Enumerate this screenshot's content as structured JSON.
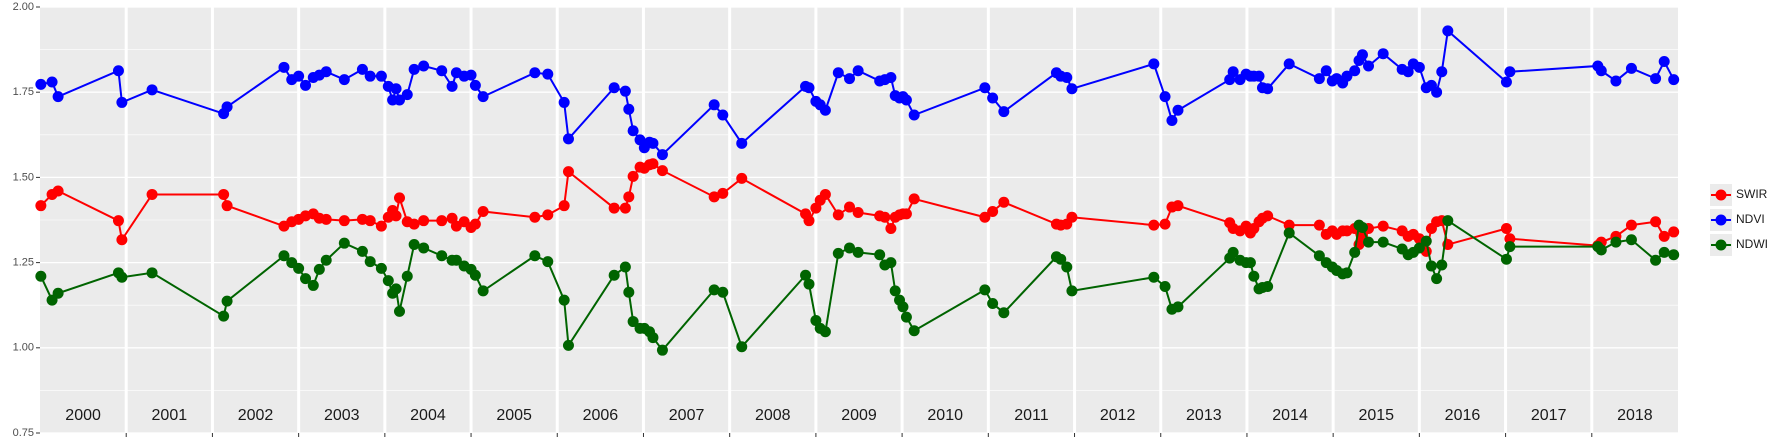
{
  "chart_data": {
    "type": "line",
    "x": [
      2000.01,
      2000.14,
      2000.21,
      2000.91,
      2000.95,
      2001.3,
      2002.13,
      2002.17,
      2002.83,
      2002.92,
      2003.0,
      2003.08,
      2003.17,
      2003.24,
      2003.32,
      2003.53,
      2003.74,
      2003.83,
      2003.96,
      2004.04,
      2004.09,
      2004.13,
      2004.17,
      2004.26,
      2004.34,
      2004.45,
      2004.66,
      2004.78,
      2004.83,
      2004.92,
      2005.0,
      2005.05,
      2005.14,
      2005.74,
      2005.89,
      2006.08,
      2006.13,
      2006.66,
      2006.79,
      2006.83,
      2006.88,
      2006.96,
      2007.01,
      2007.07,
      2007.11,
      2007.22,
      2007.82,
      2007.92,
      2008.14,
      2008.88,
      2008.92,
      2009.0,
      2009.05,
      2009.11,
      2009.26,
      2009.39,
      2009.49,
      2009.74,
      2009.8,
      2009.87,
      2009.92,
      2009.97,
      2010.01,
      2010.05,
      2010.14,
      2010.96,
      2011.05,
      2011.18,
      2011.79,
      2011.84,
      2011.91,
      2011.97,
      2012.92,
      2013.05,
      2013.13,
      2013.2,
      2013.8,
      2013.84,
      2013.92,
      2013.99,
      2014.04,
      2014.08,
      2014.14,
      2014.18,
      2014.24,
      2014.49,
      2014.84,
      2014.92,
      2014.99,
      2015.04,
      2015.11,
      2015.16,
      2015.25,
      2015.3,
      2015.34,
      2015.41,
      2015.58,
      2015.8,
      2015.87,
      2015.93,
      2016.0,
      2016.08,
      2016.14,
      2016.2,
      2016.26,
      2016.33,
      2017.01,
      2017.05,
      2018.07,
      2018.11,
      2018.28,
      2018.46,
      2018.74,
      2018.84,
      2018.95
    ],
    "series": [
      {
        "name": "SWIR",
        "color": "#ff0000",
        "values": [
          1.417,
          1.45,
          1.46,
          1.373,
          1.317,
          1.45,
          1.45,
          1.417,
          1.357,
          1.37,
          1.377,
          1.387,
          1.393,
          1.38,
          1.377,
          1.373,
          1.377,
          1.373,
          1.357,
          1.383,
          1.403,
          1.387,
          1.44,
          1.37,
          1.363,
          1.373,
          1.373,
          1.38,
          1.357,
          1.37,
          1.353,
          1.363,
          1.4,
          1.383,
          1.39,
          1.417,
          1.517,
          1.41,
          1.41,
          1.443,
          1.503,
          1.53,
          1.527,
          1.537,
          1.54,
          1.52,
          1.443,
          1.453,
          1.497,
          1.393,
          1.373,
          1.41,
          1.433,
          1.45,
          1.39,
          1.413,
          1.397,
          1.387,
          1.383,
          1.35,
          1.383,
          1.39,
          1.393,
          1.393,
          1.437,
          1.383,
          1.4,
          1.427,
          1.363,
          1.36,
          1.363,
          1.383,
          1.36,
          1.363,
          1.413,
          1.417,
          1.367,
          1.35,
          1.343,
          1.357,
          1.337,
          1.35,
          1.37,
          1.38,
          1.387,
          1.36,
          1.36,
          1.333,
          1.343,
          1.333,
          1.343,
          1.343,
          1.35,
          1.303,
          1.33,
          1.35,
          1.357,
          1.343,
          1.327,
          1.333,
          1.32,
          1.283,
          1.35,
          1.37,
          1.373,
          1.303,
          1.35,
          1.32,
          1.3,
          1.31,
          1.327,
          1.36,
          1.37,
          1.327,
          1.34
        ]
      },
      {
        "name": "NDVI",
        "color": "#0000ff",
        "values": [
          1.773,
          1.78,
          1.737,
          1.813,
          1.72,
          1.757,
          1.687,
          1.707,
          1.823,
          1.787,
          1.797,
          1.77,
          1.793,
          1.8,
          1.81,
          1.787,
          1.817,
          1.797,
          1.797,
          1.767,
          1.727,
          1.76,
          1.727,
          1.743,
          1.817,
          1.827,
          1.813,
          1.767,
          1.807,
          1.797,
          1.8,
          1.77,
          1.737,
          1.807,
          1.803,
          1.72,
          1.613,
          1.763,
          1.753,
          1.7,
          1.637,
          1.61,
          1.587,
          1.603,
          1.6,
          1.567,
          1.713,
          1.683,
          1.6,
          1.767,
          1.763,
          1.723,
          1.713,
          1.697,
          1.807,
          1.79,
          1.813,
          1.783,
          1.787,
          1.793,
          1.74,
          1.733,
          1.737,
          1.727,
          1.683,
          1.763,
          1.733,
          1.693,
          1.807,
          1.797,
          1.793,
          1.76,
          1.833,
          1.737,
          1.667,
          1.697,
          1.787,
          1.81,
          1.787,
          1.803,
          1.797,
          1.797,
          1.797,
          1.763,
          1.76,
          1.833,
          1.79,
          1.813,
          1.783,
          1.79,
          1.777,
          1.797,
          1.813,
          1.843,
          1.86,
          1.827,
          1.863,
          1.817,
          1.81,
          1.833,
          1.823,
          1.763,
          1.77,
          1.75,
          1.81,
          1.93,
          1.78,
          1.81,
          1.827,
          1.813,
          1.783,
          1.82,
          1.79,
          1.84,
          1.787
        ]
      },
      {
        "name": "NDWI",
        "color": "#006400",
        "values": [
          1.21,
          1.14,
          1.16,
          1.22,
          1.207,
          1.22,
          1.093,
          1.137,
          1.27,
          1.25,
          1.233,
          1.203,
          1.183,
          1.23,
          1.257,
          1.307,
          1.283,
          1.253,
          1.233,
          1.197,
          1.16,
          1.173,
          1.107,
          1.21,
          1.303,
          1.293,
          1.27,
          1.257,
          1.257,
          1.24,
          1.23,
          1.213,
          1.167,
          1.27,
          1.253,
          1.14,
          1.007,
          1.213,
          1.237,
          1.163,
          1.077,
          1.057,
          1.057,
          1.047,
          1.03,
          0.993,
          1.17,
          1.163,
          1.003,
          1.213,
          1.187,
          1.08,
          1.057,
          1.047,
          1.277,
          1.293,
          1.28,
          1.273,
          1.243,
          1.25,
          1.167,
          1.14,
          1.12,
          1.09,
          1.05,
          1.17,
          1.13,
          1.103,
          1.267,
          1.26,
          1.237,
          1.167,
          1.207,
          1.18,
          1.113,
          1.12,
          1.263,
          1.28,
          1.257,
          1.25,
          1.25,
          1.21,
          1.173,
          1.177,
          1.18,
          1.337,
          1.27,
          1.25,
          1.237,
          1.227,
          1.217,
          1.22,
          1.28,
          1.36,
          1.353,
          1.31,
          1.31,
          1.29,
          1.273,
          1.28,
          1.293,
          1.313,
          1.24,
          1.203,
          1.243,
          1.373,
          1.26,
          1.297,
          1.297,
          1.287,
          1.31,
          1.317,
          1.257,
          1.28,
          1.273
        ]
      }
    ],
    "xlim": [
      2000,
      2019
    ],
    "ylim": [
      0.75,
      2.0
    ],
    "yticks": [
      {
        "value": 0.75,
        "label": "0.75"
      },
      {
        "value": 1.0,
        "label": "1.00"
      },
      {
        "value": 1.25,
        "label": "1.25"
      },
      {
        "value": 1.5,
        "label": "1.50"
      },
      {
        "value": 1.75,
        "label": "1.75"
      },
      {
        "value": 2.0,
        "label": "2.00"
      }
    ],
    "year_labels": [
      2000,
      2001,
      2002,
      2003,
      2004,
      2005,
      2006,
      2007,
      2008,
      2009,
      2010,
      2011,
      2012,
      2013,
      2014,
      2015,
      2016,
      2017,
      2018
    ],
    "grid": true,
    "legend": "right"
  }
}
